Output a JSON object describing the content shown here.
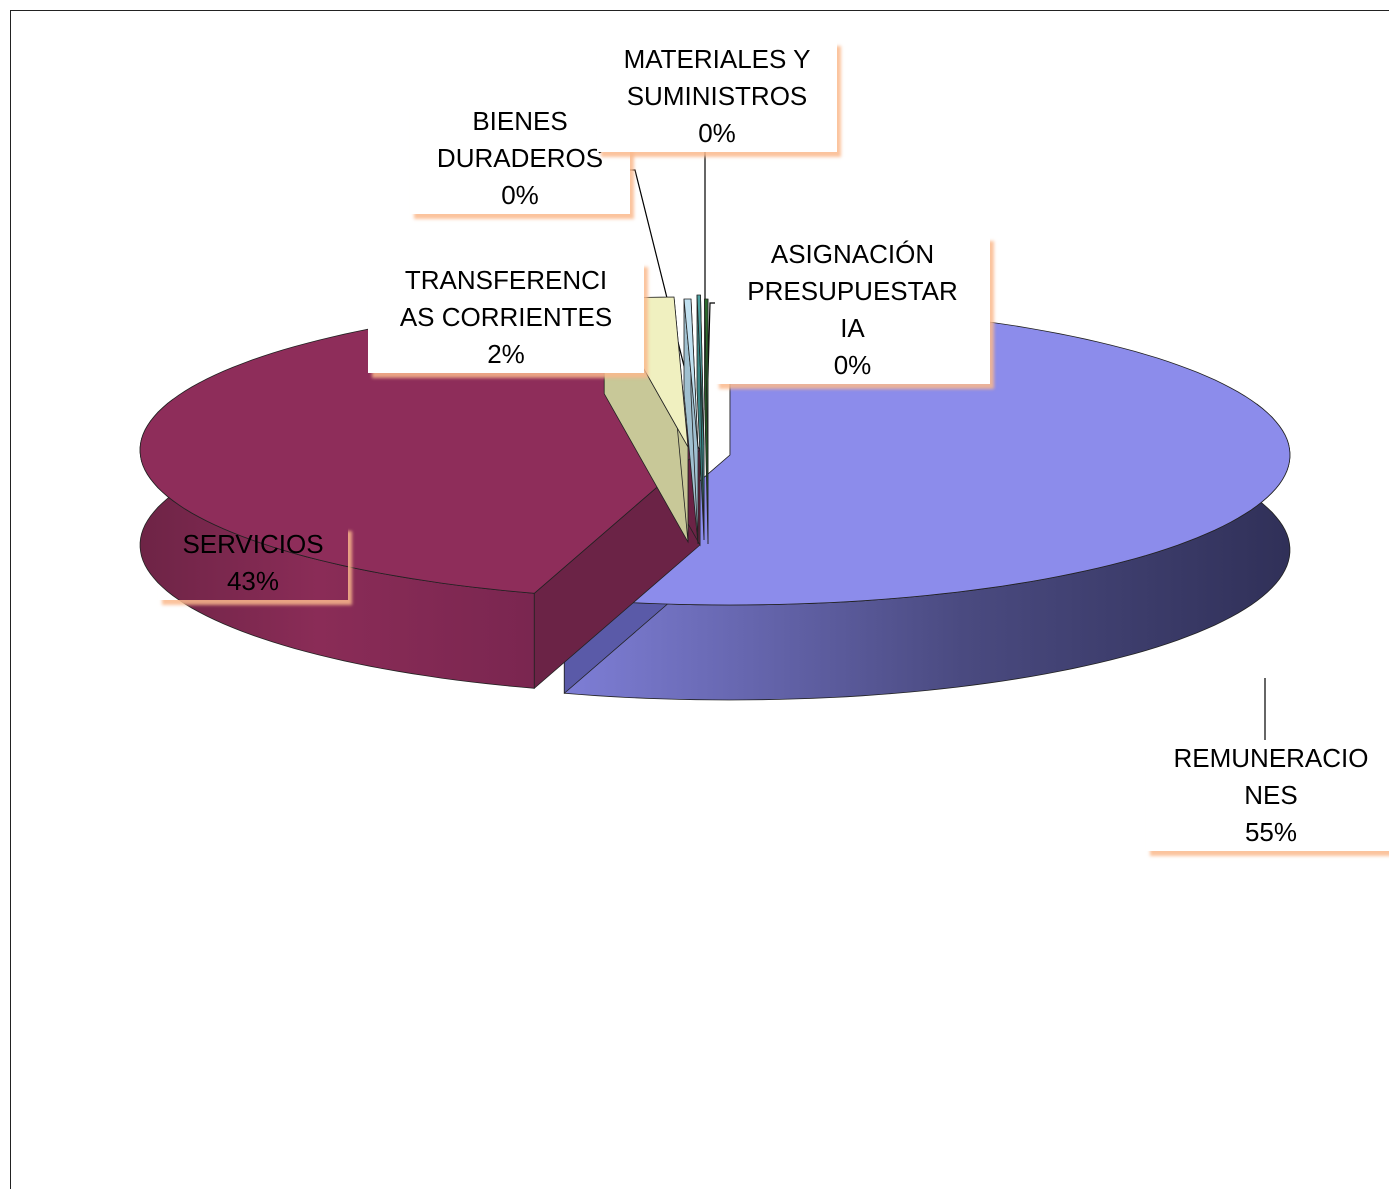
{
  "chart_data": {
    "type": "pie",
    "style": "3d-exploded",
    "title": "",
    "slices": [
      {
        "label_lines": [
          "REMUNERACIO",
          "NES"
        ],
        "pct_label": "55%",
        "value": 55,
        "color": "#8C8CEB"
      },
      {
        "label_lines": [
          "SERVICIOS"
        ],
        "pct_label": "43%",
        "value": 43,
        "color": "#8E2D5A"
      },
      {
        "label_lines": [
          "TRANSFERENCI",
          "AS CORRIENTES"
        ],
        "pct_label": "2%",
        "value": 2,
        "color": "#F0F0C0"
      },
      {
        "label_lines": [
          "BIENES",
          "DURADEROS"
        ],
        "pct_label": "0%",
        "value": 0.2,
        "color": "#C0E0F0"
      },
      {
        "label_lines": [
          "MATERIALES Y",
          "SUMINISTROS"
        ],
        "pct_label": "0%",
        "value": 0.1,
        "color": "#4FA3A3"
      },
      {
        "label_lines": [
          "ASIGNACIÓN",
          "PRESUPUESTAR",
          "IA"
        ],
        "pct_label": "0%",
        "value": 0.1,
        "color": "#2E6B2E"
      }
    ],
    "legend": "none"
  }
}
